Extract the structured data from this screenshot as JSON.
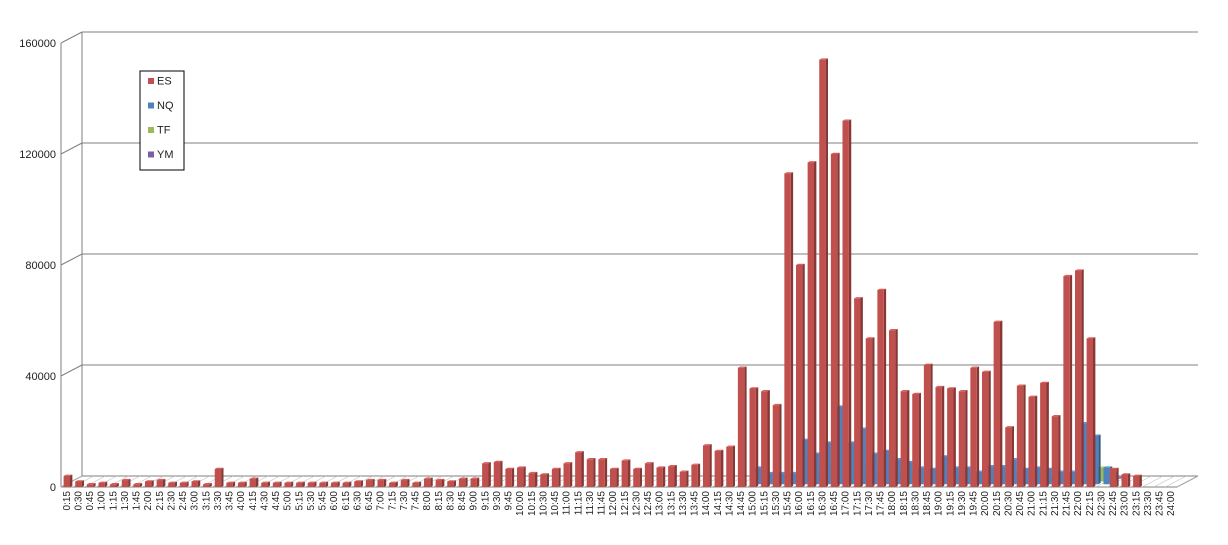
{
  "chart_data": {
    "type": "bar",
    "title": "",
    "xlabel": "",
    "ylabel": "",
    "ylim": [
      0,
      160000
    ],
    "yticks": [
      "0",
      "40000",
      "80000",
      "120000",
      "160000"
    ],
    "grid": true,
    "legend_position": "top-left",
    "categories": [
      "0:15",
      "0:30",
      "0:45",
      "1:00",
      "1:15",
      "1:30",
      "1:45",
      "2:00",
      "2:15",
      "2:30",
      "2:45",
      "3:00",
      "3:15",
      "3:30",
      "3:45",
      "4:00",
      "4:15",
      "4:30",
      "4:45",
      "5:00",
      "5:15",
      "5:30",
      "5:45",
      "6:00",
      "6:15",
      "6:30",
      "6:45",
      "7:00",
      "7:15",
      "7:30",
      "7:45",
      "8:00",
      "8:15",
      "8:30",
      "8:45",
      "9:00",
      "9:15",
      "9:30",
      "9:45",
      "10:00",
      "10:15",
      "10:30",
      "10:45",
      "11:00",
      "11:15",
      "11:30",
      "11:45",
      "12:00",
      "12:15",
      "12:30",
      "12:45",
      "13:00",
      "13:15",
      "13:30",
      "13:45",
      "14:00",
      "14:15",
      "14:30",
      "14:45",
      "15:00",
      "15:15",
      "15:30",
      "15:45",
      "16:00",
      "16:15",
      "16:30",
      "16:45",
      "17:00",
      "17:15",
      "17:30",
      "17:45",
      "18:00",
      "18:15",
      "18:30",
      "18:45",
      "19:00",
      "19:15",
      "19:30",
      "19:45",
      "20:00",
      "20:15",
      "20:30",
      "20:45",
      "21:00",
      "21:15",
      "21:30",
      "21:45",
      "22:00",
      "22:15",
      "22:30",
      "22:45",
      "23:00",
      "23:15",
      "23:30",
      "23:45",
      "24:00"
    ],
    "series": [
      {
        "name": "YM",
        "color": "#7b5ea7",
        "values": [
          0,
          0,
          0,
          0,
          0,
          0,
          0,
          0,
          0,
          0,
          0,
          0,
          0,
          0,
          0,
          0,
          0,
          0,
          0,
          0,
          0,
          0,
          0,
          0,
          0,
          0,
          0,
          0,
          0,
          0,
          0,
          0,
          0,
          0,
          0,
          0,
          0,
          0,
          0,
          0,
          0,
          0,
          0,
          0,
          0,
          0,
          0,
          0,
          0,
          0,
          0,
          0,
          0,
          0,
          0,
          0,
          0,
          0,
          0,
          0,
          300,
          300,
          300,
          300,
          300,
          300,
          300,
          300,
          300,
          300,
          300,
          300,
          300,
          300,
          300,
          300,
          300,
          300,
          300,
          300,
          300,
          300,
          300,
          300,
          300,
          300,
          300,
          300,
          300,
          300,
          0,
          0,
          0,
          0,
          0,
          0
        ]
      },
      {
        "name": "TF",
        "color": "#9bbb59",
        "values": [
          0,
          0,
          0,
          0,
          0,
          0,
          0,
          0,
          0,
          0,
          0,
          0,
          0,
          0,
          0,
          0,
          0,
          0,
          0,
          0,
          0,
          0,
          0,
          0,
          0,
          0,
          0,
          0,
          0,
          0,
          0,
          0,
          0,
          0,
          0,
          0,
          0,
          0,
          0,
          0,
          0,
          0,
          0,
          0,
          0,
          0,
          0,
          0,
          0,
          0,
          0,
          0,
          0,
          0,
          0,
          0,
          0,
          0,
          0,
          0,
          800,
          1000,
          1500,
          9000,
          5000,
          6000,
          7000,
          5000,
          6000,
          4000,
          4000,
          3000,
          3000,
          2500,
          2500,
          2500,
          2500,
          2500,
          2000,
          2500,
          3000,
          3000,
          2000,
          2000,
          2000,
          2000,
          2000,
          2500,
          5000,
          3000,
          0,
          0,
          0,
          0,
          0,
          0
        ]
      },
      {
        "name": "NQ",
        "color": "#4f81bd",
        "values": [
          0,
          0,
          0,
          0,
          0,
          0,
          0,
          0,
          0,
          0,
          0,
          0,
          0,
          0,
          0,
          0,
          0,
          0,
          0,
          0,
          0,
          0,
          0,
          0,
          0,
          0,
          0,
          0,
          0,
          0,
          0,
          0,
          0,
          0,
          0,
          0,
          0,
          0,
          0,
          0,
          0,
          0,
          0,
          0,
          0,
          0,
          0,
          0,
          0,
          0,
          0,
          0,
          0,
          0,
          0,
          0,
          0,
          0,
          0,
          6000,
          4000,
          4000,
          4000,
          16000,
          11000,
          15000,
          28000,
          15000,
          20000,
          11000,
          12000,
          9000,
          8000,
          6000,
          5500,
          10000,
          6000,
          6000,
          4500,
          6500,
          6500,
          9000,
          5500,
          6000,
          5500,
          4500,
          4500,
          22000,
          17500,
          6000,
          0,
          0,
          0,
          0,
          0,
          0
        ]
      },
      {
        "name": "ES",
        "color": "#c0504d",
        "values": [
          4000,
          2000,
          1000,
          1500,
          1000,
          2500,
          1000,
          2000,
          2500,
          1500,
          1500,
          2000,
          1000,
          6500,
          1500,
          1500,
          3000,
          1500,
          1500,
          1500,
          1500,
          1500,
          1500,
          1500,
          1500,
          2000,
          2500,
          2500,
          1500,
          2500,
          1500,
          3000,
          2500,
          2000,
          3000,
          3000,
          8500,
          9000,
          6500,
          7000,
          5000,
          4500,
          6500,
          8500,
          12500,
          10000,
          10000,
          6500,
          9500,
          6500,
          8500,
          7000,
          7500,
          5500,
          8000,
          15000,
          13000,
          14500,
          43000,
          35500,
          34500,
          29500,
          113000,
          80000,
          117000,
          154000,
          120000,
          132000,
          68000,
          53500,
          71000,
          56500,
          34500,
          33500,
          44000,
          36000,
          35500,
          34500,
          43000,
          41500,
          59500,
          21500,
          36500,
          32500,
          37500,
          25500,
          76000,
          78000,
          53500,
          0,
          6500,
          4500,
          4000,
          0,
          0,
          0
        ]
      }
    ]
  }
}
